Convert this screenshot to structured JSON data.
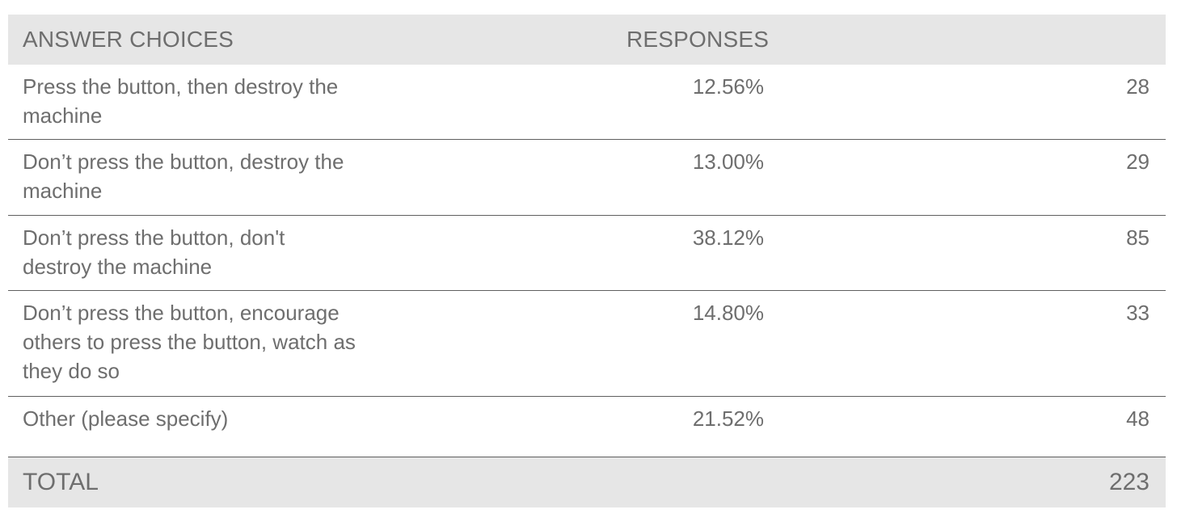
{
  "table": {
    "headers": {
      "answer_choices": "ANSWER CHOICES",
      "responses": "RESPONSES"
    },
    "rows": [
      {
        "choice": "Press the button, then destroy the machine",
        "percent": "12.56%",
        "count": "28"
      },
      {
        "choice": "Don’t press the button, destroy the machine",
        "percent": "13.00%",
        "count": "29"
      },
      {
        "choice": "Don’t press the button, don't destroy the machine",
        "percent": "38.12%",
        "count": "85"
      },
      {
        "choice": "Don’t press the button, encourage others to press the button, watch as they do so",
        "percent": "14.80%",
        "count": "33"
      },
      {
        "choice": "Other (please specify)",
        "percent": "21.52%",
        "count": "48"
      }
    ],
    "total": {
      "label": "TOTAL",
      "count": "223"
    }
  }
}
